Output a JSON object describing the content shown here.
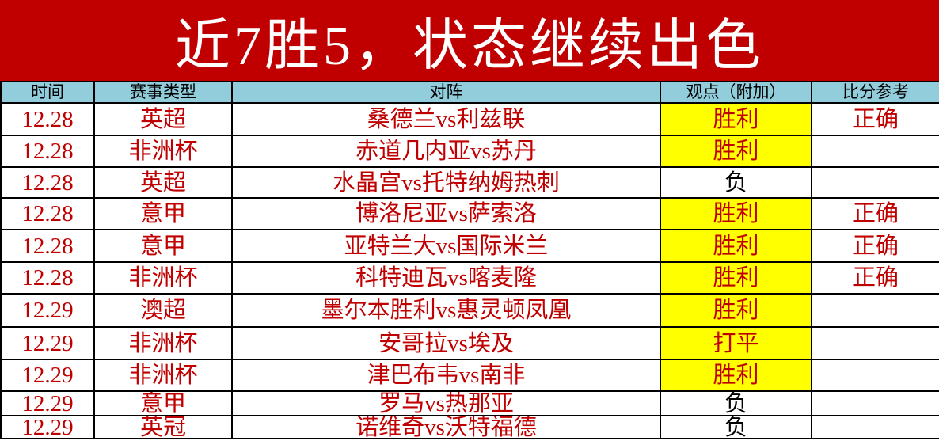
{
  "title": "近7胜5，状态继续出色",
  "headers": [
    "时间",
    "赛事类型",
    "对阵",
    "观点（附加）",
    "比分参考"
  ],
  "colors": {
    "banner": "#c00000",
    "header": "#92cddc",
    "highlight": "#ffff00",
    "text": "#c00000"
  },
  "rows": [
    {
      "time": "12.28",
      "league": "英超",
      "match": "桑德兰vs利兹联",
      "pick": "胜利",
      "result": "正确",
      "highlight": true
    },
    {
      "time": "12.28",
      "league": "非洲杯",
      "match": "赤道几内亚vs苏丹",
      "pick": "胜利",
      "result": "",
      "highlight": true
    },
    {
      "time": "12.28",
      "league": "英超",
      "match": "水晶宫vs托特纳姆热刺",
      "pick": "负",
      "result": "",
      "highlight": false
    },
    {
      "time": "12.28",
      "league": "意甲",
      "match": "博洛尼亚vs萨索洛",
      "pick": "胜利",
      "result": "正确",
      "highlight": true
    },
    {
      "time": "12.28",
      "league": "意甲",
      "match": "亚特兰大vs国际米兰",
      "pick": "胜利",
      "result": "正确",
      "highlight": true
    },
    {
      "time": "12.28",
      "league": "非洲杯",
      "match": "科特迪瓦vs喀麦隆",
      "pick": "胜利",
      "result": "正确",
      "highlight": true
    },
    {
      "time": "12.29",
      "league": "澳超",
      "match": "墨尔本胜利vs惠灵顿凤凰",
      "pick": "胜利",
      "result": "",
      "highlight": true
    },
    {
      "time": "12.29",
      "league": "非洲杯",
      "match": "安哥拉vs埃及",
      "pick": "打平",
      "result": "",
      "highlight": true
    },
    {
      "time": "12.29",
      "league": "非洲杯",
      "match": "津巴布韦vs南非",
      "pick": "胜利",
      "result": "",
      "highlight": true
    },
    {
      "time": "12.29",
      "league": "意甲",
      "match": "罗马vs热那亚",
      "pick": "负",
      "result": "",
      "highlight": false
    },
    {
      "time": "12.29",
      "league": "英冠",
      "match": "诺维奇vs沃特福德",
      "pick": "负",
      "result": "",
      "highlight": false
    }
  ]
}
